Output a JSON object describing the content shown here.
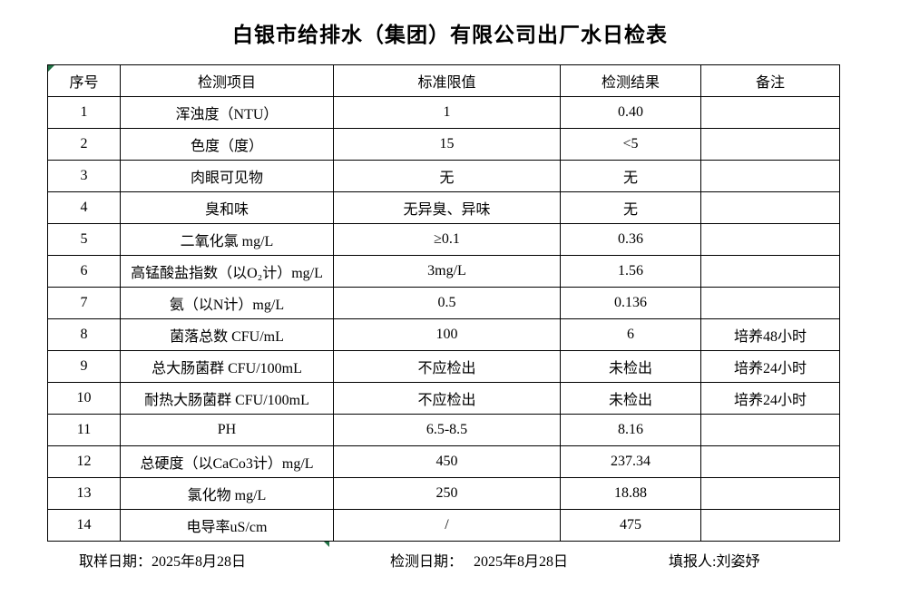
{
  "title": "白银市给排水（集团）有限公司出厂水日检表",
  "colors": {
    "marker_green": "#217346",
    "border": "#000000",
    "background": "#ffffff"
  },
  "table": {
    "headers": [
      "序号",
      "检测项目",
      "标准限值",
      "检测结果",
      "备注"
    ],
    "rows": [
      {
        "no": "1",
        "item": "浑浊度（NTU）",
        "limit": "1",
        "result": "0.40",
        "note": ""
      },
      {
        "no": "2",
        "item": "色度（度）",
        "limit": "15",
        "result": "<5",
        "note": ""
      },
      {
        "no": "3",
        "item": "肉眼可见物",
        "limit": "无",
        "result": "无",
        "note": ""
      },
      {
        "no": "4",
        "item": "臭和味",
        "limit": "无异臭、异味",
        "result": "无",
        "note": ""
      },
      {
        "no": "5",
        "item": "二氧化氯 mg/L",
        "limit": "≥0.1",
        "result": "0.36",
        "note": ""
      },
      {
        "no": "6",
        "item": "高锰酸盐指数（以O₂计）mg/L",
        "limit": "3mg/L",
        "result": "1.56",
        "note": ""
      },
      {
        "no": "7",
        "item": "氨（以N计）mg/L",
        "limit": "0.5",
        "result": "0.136",
        "note": ""
      },
      {
        "no": "8",
        "item": "菌落总数 CFU/mL",
        "limit": "100",
        "result": "6",
        "note": "培养48小时"
      },
      {
        "no": "9",
        "item": "总大肠菌群 CFU/100mL",
        "limit": "不应检出",
        "result": "未检出",
        "note": "培养24小时"
      },
      {
        "no": "10",
        "item": "耐热大肠菌群 CFU/100mL",
        "limit": "不应检出",
        "result": "未检出",
        "note": "培养24小时"
      },
      {
        "no": "11",
        "item": "PH",
        "limit": "6.5-8.5",
        "result": "8.16",
        "note": ""
      },
      {
        "no": "12",
        "item": "总硬度（以CaCo3计）mg/L",
        "limit": "450",
        "result": "237.34",
        "note": ""
      },
      {
        "no": "13",
        "item": "氯化物 mg/L",
        "limit": "250",
        "result": "18.88",
        "note": ""
      },
      {
        "no": "14",
        "item": "电导率uS/cm",
        "limit": "/",
        "result": "475",
        "note": ""
      }
    ]
  },
  "footer": {
    "sampling": {
      "label": "取样日期：",
      "date": "2025年8月28日"
    },
    "testing": {
      "label": "检测日期：",
      "date": "2025年8月28日"
    },
    "reporter": {
      "label": "填报人:",
      "name": "刘姿妤"
    }
  }
}
